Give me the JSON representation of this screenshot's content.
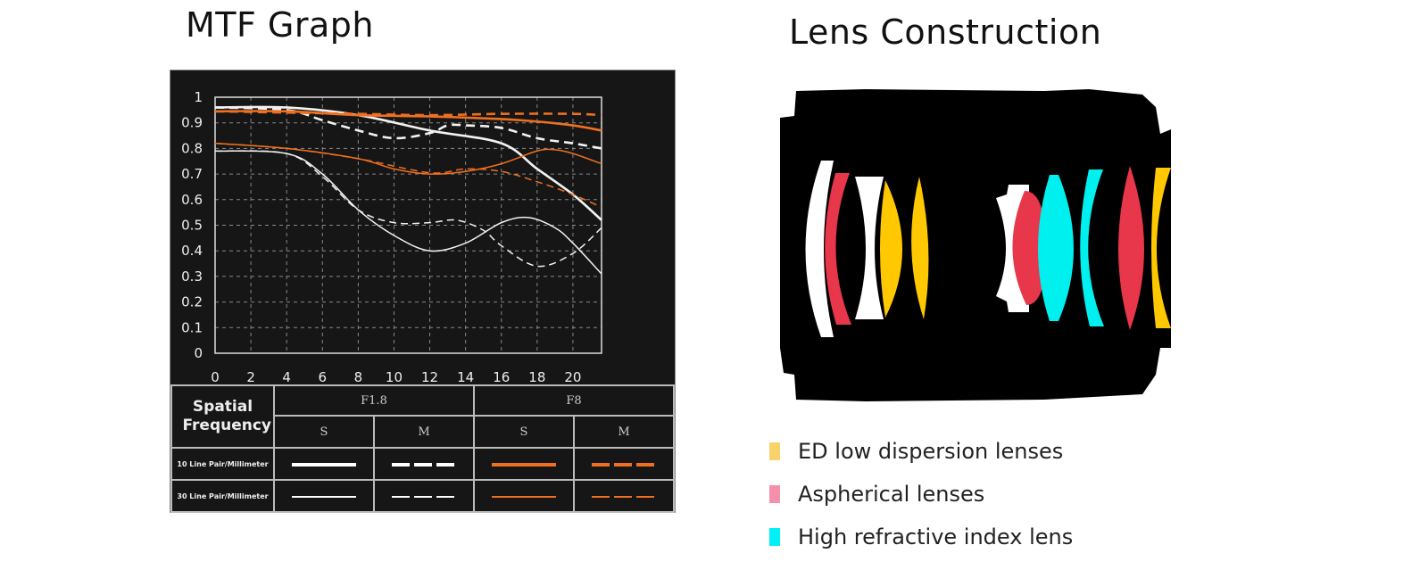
{
  "mtf": {
    "title": "MTF Graph",
    "legend": {
      "header": "Spatial Frequency",
      "apertures": [
        "F1.8",
        "F8"
      ],
      "sub": [
        "S",
        "M",
        "S",
        "M"
      ],
      "rows": [
        "10 Line Pair/Millimeter",
        "30 Line Pair/Millimeter"
      ]
    }
  },
  "chart_data": {
    "type": "line",
    "title": "MTF Graph",
    "xlabel": "",
    "ylabel": "",
    "xlim": [
      0,
      21.6
    ],
    "ylim": [
      0,
      1
    ],
    "xticks": [
      "0",
      "2",
      "4",
      "6",
      "8",
      "10",
      "12",
      "14",
      "16",
      "18",
      "20"
    ],
    "yticks": [
      "0",
      "0.1",
      "0.2",
      "0.3",
      "0.4",
      "0.5",
      "0.6",
      "0.7",
      "0.8",
      "0.9",
      "1"
    ],
    "grid": true,
    "colors": {
      "F1.8": "#f2f2f2",
      "F8": "#f07020"
    },
    "series": [
      {
        "name": "F1.8 S 10 Line Pair/Millimeter",
        "aperture": "F1.8",
        "dash": false,
        "lp": 10,
        "points": [
          [
            0,
            0.96
          ],
          [
            4,
            0.96
          ],
          [
            8,
            0.93
          ],
          [
            12,
            0.87
          ],
          [
            16,
            0.82
          ],
          [
            18,
            0.72
          ],
          [
            20,
            0.62
          ],
          [
            21.6,
            0.52
          ]
        ]
      },
      {
        "name": "F1.8 M 10 Line Pair/Millimeter",
        "aperture": "F1.8",
        "dash": true,
        "lp": 10,
        "points": [
          [
            0,
            0.96
          ],
          [
            4,
            0.95
          ],
          [
            6,
            0.91
          ],
          [
            8,
            0.87
          ],
          [
            10,
            0.84
          ],
          [
            12,
            0.86
          ],
          [
            13,
            0.89
          ],
          [
            14,
            0.89
          ],
          [
            16,
            0.88
          ],
          [
            18,
            0.84
          ],
          [
            20,
            0.82
          ],
          [
            21.6,
            0.8
          ]
        ]
      },
      {
        "name": "F8 S 10 Line Pair/Millimeter",
        "aperture": "F8",
        "dash": false,
        "lp": 10,
        "points": [
          [
            0,
            0.945
          ],
          [
            4,
            0.945
          ],
          [
            8,
            0.93
          ],
          [
            12,
            0.925
          ],
          [
            16,
            0.915
          ],
          [
            18,
            0.905
          ],
          [
            20,
            0.89
          ],
          [
            21.6,
            0.87
          ]
        ]
      },
      {
        "name": "F8 M 10 Line Pair/Millimeter",
        "aperture": "F8",
        "dash": true,
        "lp": 10,
        "points": [
          [
            0,
            0.945
          ],
          [
            8,
            0.935
          ],
          [
            12,
            0.93
          ],
          [
            16,
            0.935
          ],
          [
            20,
            0.935
          ],
          [
            21.6,
            0.93
          ]
        ]
      },
      {
        "name": "F1.8 S 30 Line Pair/Millimeter",
        "aperture": "F1.8",
        "dash": false,
        "lp": 30,
        "points": [
          [
            0,
            0.79
          ],
          [
            4,
            0.78
          ],
          [
            6,
            0.7
          ],
          [
            8,
            0.56
          ],
          [
            10,
            0.46
          ],
          [
            12,
            0.4
          ],
          [
            14,
            0.43
          ],
          [
            16,
            0.51
          ],
          [
            17.5,
            0.53
          ],
          [
            19,
            0.49
          ],
          [
            20,
            0.43
          ],
          [
            21.6,
            0.31
          ]
        ]
      },
      {
        "name": "F1.8 M 30 Line Pair/Millimeter",
        "aperture": "F1.8",
        "dash": true,
        "lp": 30,
        "points": [
          [
            0,
            0.79
          ],
          [
            4,
            0.78
          ],
          [
            6,
            0.69
          ],
          [
            8,
            0.56
          ],
          [
            10,
            0.51
          ],
          [
            12,
            0.51
          ],
          [
            13.5,
            0.52
          ],
          [
            15,
            0.48
          ],
          [
            16,
            0.42
          ],
          [
            18,
            0.34
          ],
          [
            20,
            0.39
          ],
          [
            21.6,
            0.49
          ]
        ]
      },
      {
        "name": "F8 S 30 Line Pair/Millimeter",
        "aperture": "F8",
        "dash": false,
        "lp": 30,
        "points": [
          [
            0,
            0.82
          ],
          [
            4,
            0.8
          ],
          [
            8,
            0.76
          ],
          [
            10,
            0.72
          ],
          [
            12,
            0.7
          ],
          [
            14,
            0.71
          ],
          [
            16,
            0.74
          ],
          [
            18,
            0.79
          ],
          [
            19,
            0.795
          ],
          [
            20,
            0.78
          ],
          [
            21.6,
            0.74
          ]
        ]
      },
      {
        "name": "F8 M 30 Line Pair/Millimeter",
        "aperture": "F8",
        "dash": true,
        "lp": 30,
        "points": [
          [
            0,
            0.82
          ],
          [
            4,
            0.8
          ],
          [
            8,
            0.76
          ],
          [
            12,
            0.705
          ],
          [
            14,
            0.72
          ],
          [
            16,
            0.71
          ],
          [
            18,
            0.67
          ],
          [
            20,
            0.62
          ],
          [
            21.6,
            0.57
          ]
        ]
      }
    ]
  },
  "lens": {
    "title": "Lens Construction",
    "legend": [
      {
        "label": "ED low dispersion lenses",
        "color": "#f7d36a"
      },
      {
        "label": "Aspherical lenses",
        "color": "#f58fab"
      },
      {
        "label": "High refractive index lens",
        "color": "#00f0f5"
      }
    ],
    "element_colors": {
      "ed": "#ffc800",
      "aspherical": "#e8364a",
      "high_refractive": "#00f0f0",
      "standard": "#ffffff",
      "body": "#000000"
    }
  }
}
